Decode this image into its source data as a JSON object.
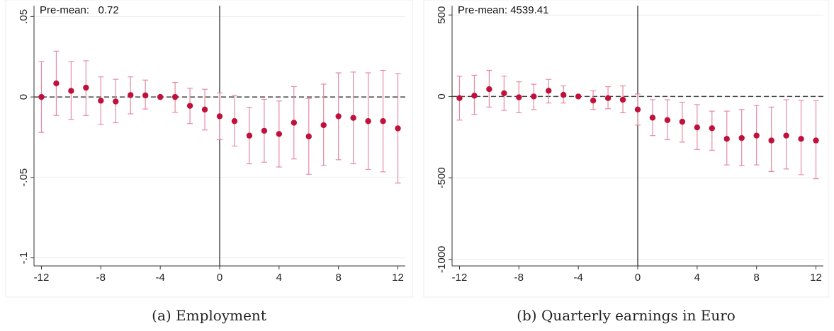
{
  "chart_data": [
    {
      "type": "scatter",
      "subtype": "event-study-with-confidence-intervals",
      "caption": "(a) Employment",
      "annotation": "Pre-mean:   0.72",
      "x_ticks": [
        "-12",
        "-8",
        "-4",
        "0",
        "4",
        "8",
        "12"
      ],
      "y_ticks": [
        ".05",
        "0",
        "-.05",
        "-.1"
      ],
      "ylim": [
        -0.105,
        0.055
      ],
      "xlim": [
        -12.5,
        12.5
      ],
      "reference_vline": 0,
      "reference_hline": 0,
      "grid": "horizontal",
      "colors": {
        "point": "#c0103c",
        "ci": "#e58ba1",
        "zero_line": "#444444"
      },
      "x": [
        -12,
        -11,
        -10,
        -9,
        -8,
        -7,
        -6,
        -5,
        -4,
        -3,
        -2,
        -1,
        0,
        1,
        2,
        3,
        4,
        5,
        6,
        7,
        8,
        9,
        10,
        11,
        12
      ],
      "y": [
        0.0,
        0.0085,
        0.0038,
        0.0058,
        -0.0023,
        -0.0028,
        0.0012,
        0.001,
        0.0,
        0.0,
        -0.0055,
        -0.0078,
        -0.012,
        -0.015,
        -0.024,
        -0.021,
        -0.023,
        -0.016,
        -0.0245,
        -0.0175,
        -0.012,
        -0.013,
        -0.015,
        -0.015,
        -0.0195
      ],
      "ci_low": [
        -0.022,
        -0.0115,
        -0.014,
        -0.0115,
        -0.017,
        -0.016,
        -0.0105,
        -0.0075,
        0.0,
        -0.0095,
        -0.0165,
        -0.0205,
        -0.0265,
        -0.0305,
        -0.0415,
        -0.0405,
        -0.0435,
        -0.0385,
        -0.048,
        -0.0425,
        -0.039,
        -0.0415,
        -0.045,
        -0.0465,
        -0.0535
      ],
      "ci_high": [
        0.022,
        0.0285,
        0.022,
        0.0225,
        0.0125,
        0.011,
        0.0125,
        0.0105,
        0.0,
        0.009,
        0.0055,
        0.0048,
        0.0025,
        0.001,
        -0.0065,
        -0.0015,
        -0.0025,
        0.0065,
        -0.001,
        0.008,
        0.015,
        0.0155,
        0.015,
        0.0165,
        0.0145
      ]
    },
    {
      "type": "scatter",
      "subtype": "event-study-with-confidence-intervals",
      "caption": "(b) Quarterly earnings in Euro",
      "annotation": "Pre-mean: 4539.41",
      "x_ticks": [
        "-12",
        "-8",
        "-4",
        "0",
        "4",
        "8",
        "12"
      ],
      "y_ticks": [
        "500",
        "0",
        "-500",
        "-1000"
      ],
      "ylim": [
        -1040,
        540
      ],
      "xlim": [
        -12.5,
        12.5
      ],
      "reference_vline": 0,
      "reference_hline": 0,
      "grid": "horizontal",
      "colors": {
        "point": "#c0103c",
        "ci": "#e58ba1",
        "zero_line": "#444444"
      },
      "x": [
        -12,
        -11,
        -10,
        -9,
        -8,
        -7,
        -6,
        -5,
        -4,
        -3,
        -2,
        -1,
        0,
        1,
        2,
        3,
        4,
        5,
        6,
        7,
        8,
        9,
        10,
        11,
        12
      ],
      "y": [
        -10,
        5,
        45,
        20,
        -5,
        0,
        35,
        10,
        0,
        -25,
        -10,
        -20,
        -80,
        -130,
        -145,
        -155,
        -190,
        -195,
        -260,
        -255,
        -240,
        -270,
        -240,
        -260,
        -270
      ],
      "ci_low": [
        -145,
        -110,
        -65,
        -85,
        -100,
        -80,
        -40,
        -40,
        0,
        -80,
        -75,
        -100,
        -175,
        -240,
        -265,
        -280,
        -325,
        -330,
        -420,
        -425,
        -420,
        -460,
        -445,
        -480,
        -505
      ],
      "ci_high": [
        125,
        130,
        160,
        125,
        90,
        75,
        105,
        65,
        0,
        35,
        60,
        65,
        15,
        -20,
        -20,
        -35,
        -50,
        -90,
        -90,
        -80,
        -55,
        -65,
        -20,
        -25,
        -25
      ]
    }
  ]
}
